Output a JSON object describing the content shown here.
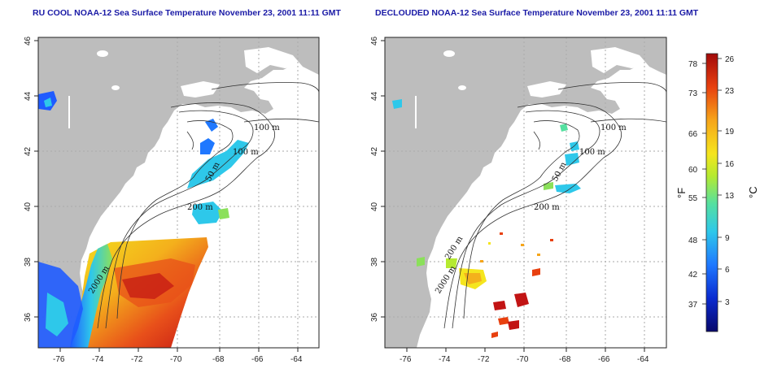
{
  "panels": [
    {
      "title": "RU COOL NOAA-12 Sea Surface Temperature November 23, 2001 11:11 GMT"
    },
    {
      "title": "DECLOUDED NOAA-12 Sea Surface Temperature November 23, 2001 11:11 GMT"
    }
  ],
  "axes": {
    "lon_ticks": [
      "-76",
      "-74",
      "-72",
      "-70",
      "-68",
      "-66",
      "-64"
    ],
    "lat_ticks": [
      "46",
      "44",
      "42",
      "40",
      "38",
      "36"
    ]
  },
  "contours": {
    "left": [
      "100 m",
      "100 m",
      "50 m",
      "200 m",
      "2000 m"
    ],
    "right": [
      "100 m",
      "100 m",
      "50 m",
      "200 m",
      "200 m",
      "2000 m"
    ]
  },
  "colorbar": {
    "fahrenheit_ticks": [
      "78",
      "73",
      "66",
      "60",
      "55",
      "48",
      "42",
      "37"
    ],
    "celsius_ticks": [
      "26",
      "23",
      "19",
      "16",
      "13",
      "9",
      "6",
      "3"
    ],
    "fahrenheit_unit": "°F",
    "celsius_unit": "°C",
    "colors": [
      "#08086b",
      "#0a2bd0",
      "#1f78ff",
      "#2ec8ea",
      "#55e0a0",
      "#b5ea30",
      "#f5e51e",
      "#f6a51a",
      "#e8400f",
      "#a20a0a"
    ]
  },
  "colors": {
    "land": "#bdbdbd",
    "ocean": "#ffffff",
    "title": "#1a1aa6",
    "grid": "#aaaaaa"
  }
}
